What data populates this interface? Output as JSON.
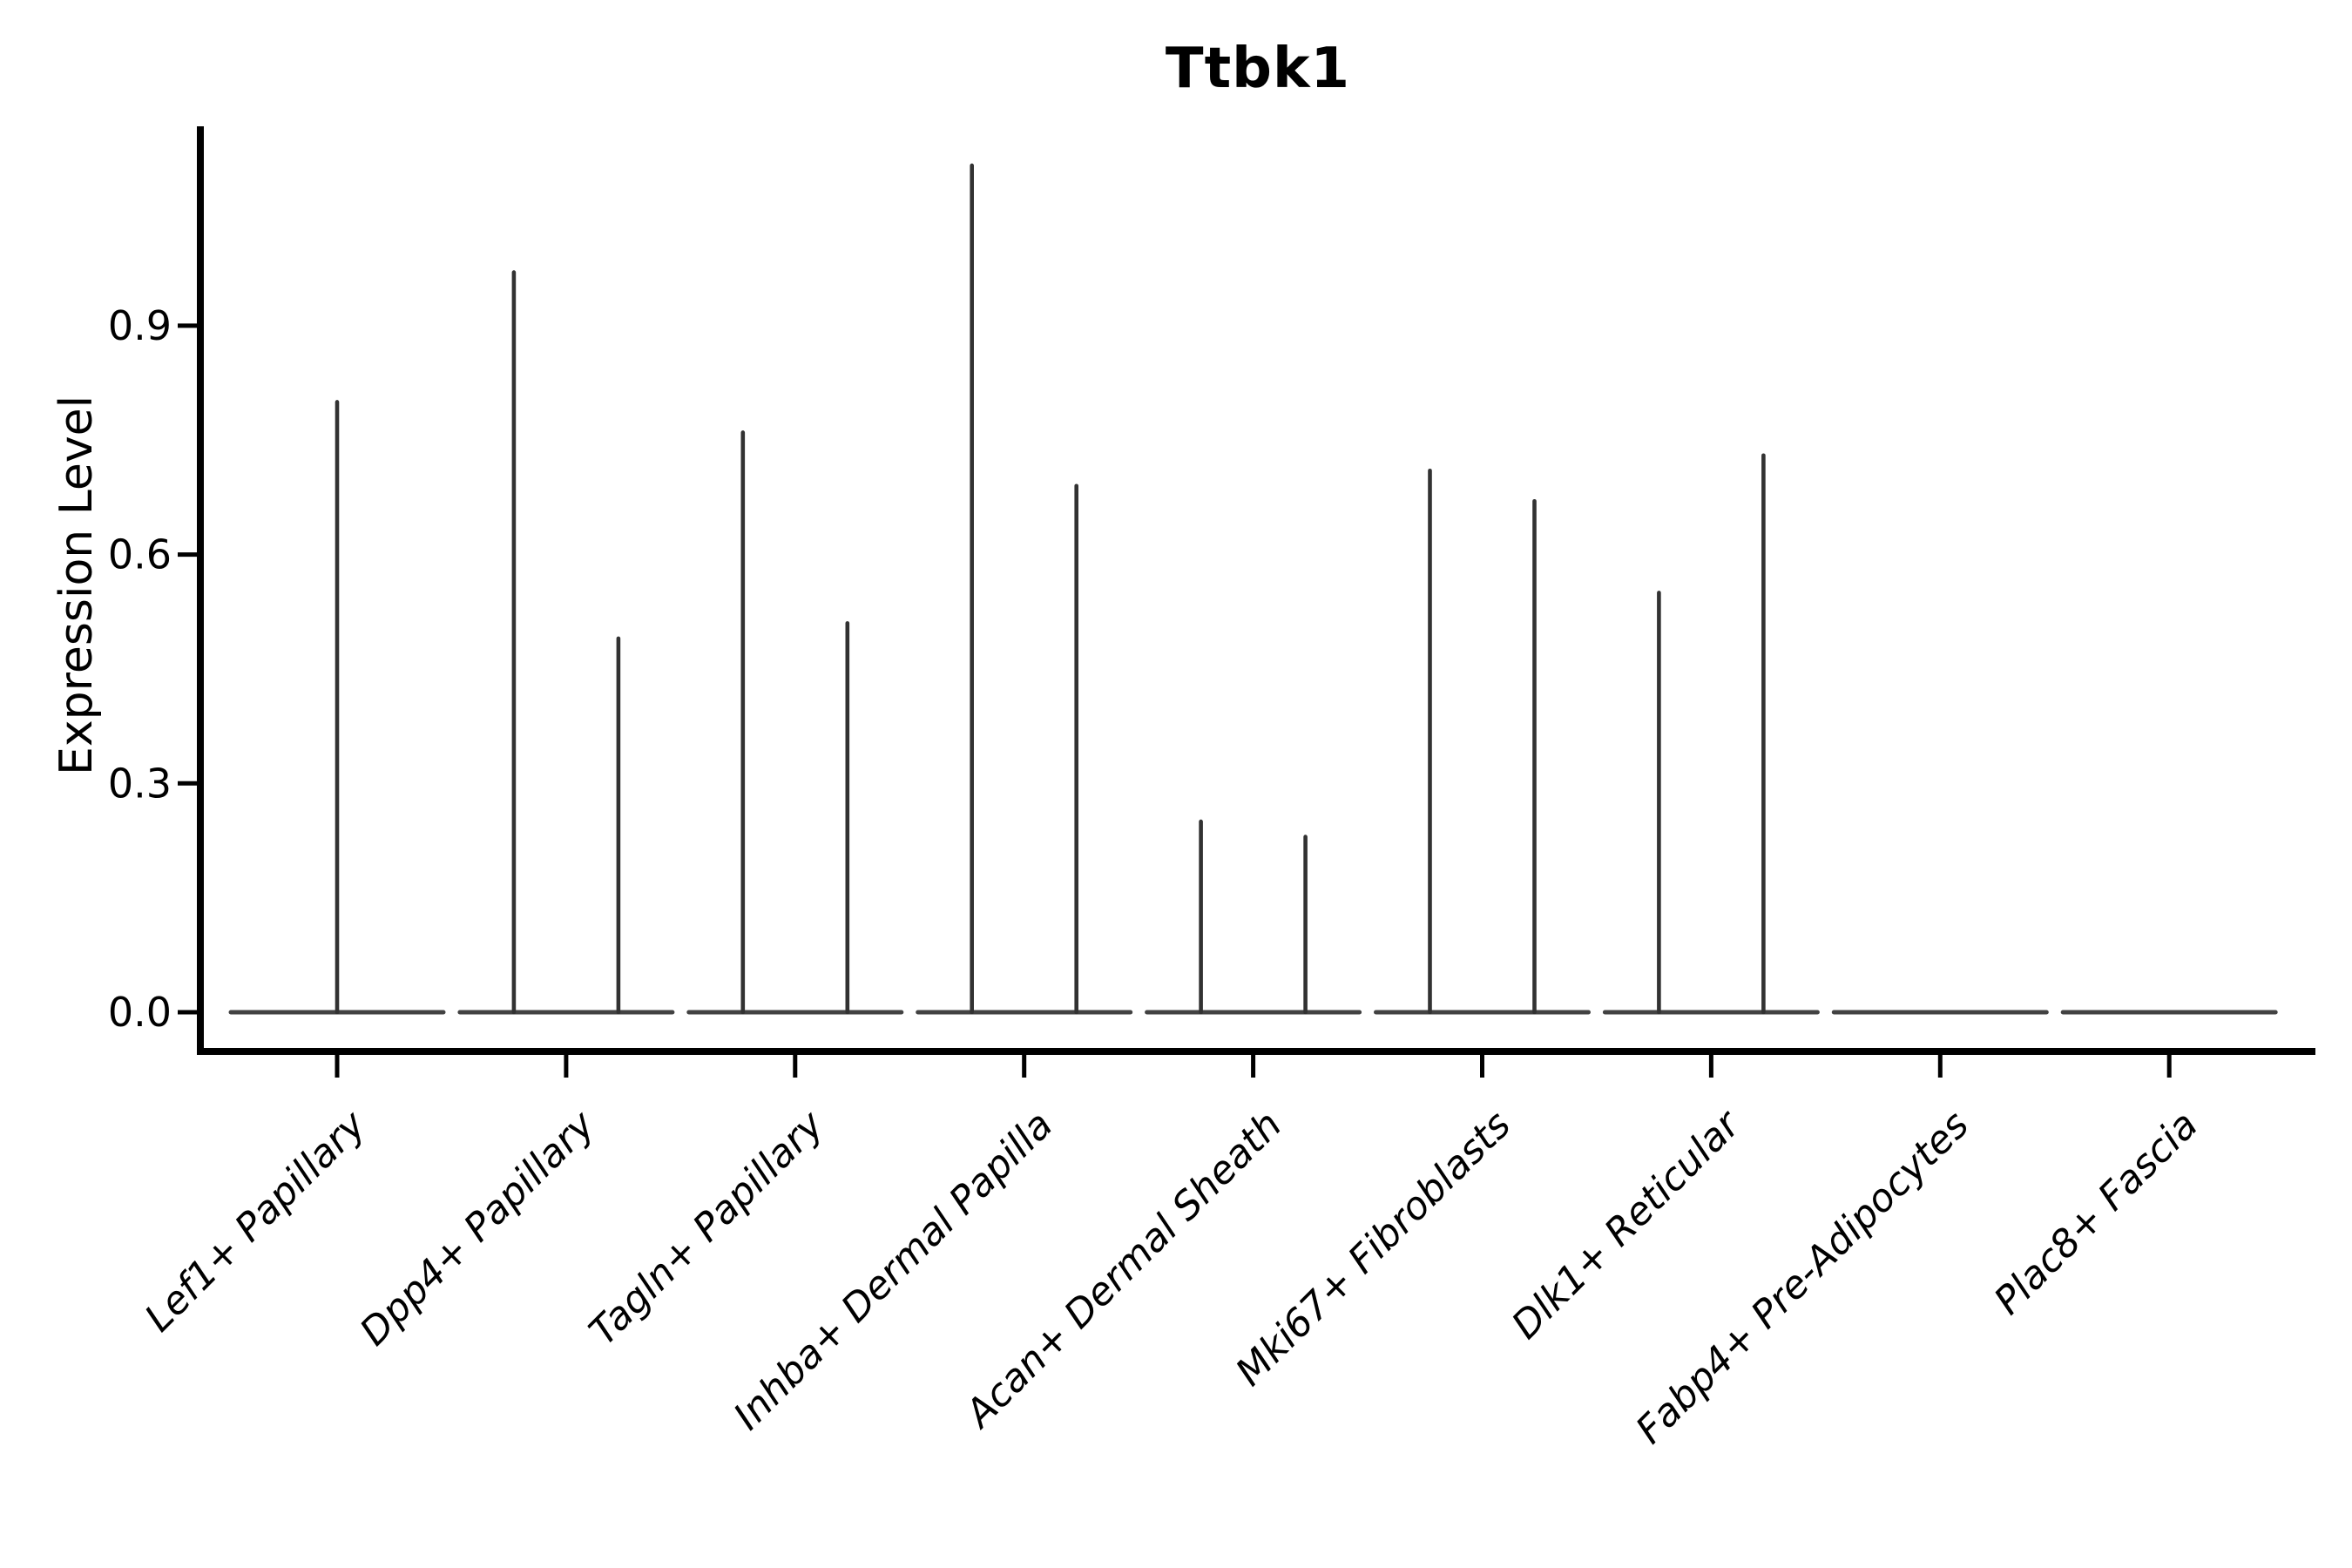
{
  "chart_data": {
    "type": "violin",
    "title": "Ttbk1",
    "ylabel": "Expression Level",
    "xlabel": "",
    "ylim": [
      -0.05,
      1.16
    ],
    "yticks": [
      0.0,
      0.3,
      0.6,
      0.9
    ],
    "ytick_labels": [
      "0.0",
      "0.3",
      "0.6",
      "0.9"
    ],
    "grid": false,
    "legend": "none",
    "description": "Violin plot of single-cell expression; nearly all cells at 0 so each violin renders as a flat body at zero with thin spikes up to the maximum expression value. Categories 2-7 contain two side-by-side violins (left/right); category 1 a single centered violin; categories 8-9 are entirely flat at zero.",
    "categories": [
      "Lef1+ Papillary",
      "Dpp4+ Papillary",
      "Tagln+ Papillary",
      "Inhba+ Dermal Papilla",
      "Acan+ Dermal Sheath",
      "Mki67+ Fibroblasts",
      "Dlk1+ Reticular",
      "Fabp4+ Pre-Adipocytes",
      "Plac8+ Fascia"
    ],
    "violins": [
      {
        "category": "Lef1+ Papillary",
        "flat_body_at_zero": true,
        "spikes": [
          {
            "position": "center",
            "max_expression": 0.8
          }
        ]
      },
      {
        "category": "Dpp4+ Papillary",
        "flat_body_at_zero": true,
        "spikes": [
          {
            "position": "left",
            "max_expression": 0.97
          },
          {
            "position": "right",
            "max_expression": 0.49
          }
        ]
      },
      {
        "category": "Tagln+ Papillary",
        "flat_body_at_zero": true,
        "spikes": [
          {
            "position": "left",
            "max_expression": 0.76
          },
          {
            "position": "right",
            "max_expression": 0.51
          }
        ]
      },
      {
        "category": "Inhba+ Dermal Papilla",
        "flat_body_at_zero": true,
        "spikes": [
          {
            "position": "left",
            "max_expression": 1.11
          },
          {
            "position": "right",
            "max_expression": 0.69
          }
        ]
      },
      {
        "category": "Acan+ Dermal Sheath",
        "flat_body_at_zero": true,
        "spikes": [
          {
            "position": "left",
            "max_expression": 0.25
          },
          {
            "position": "right",
            "max_expression": 0.23
          }
        ]
      },
      {
        "category": "Mki67+ Fibroblasts",
        "flat_body_at_zero": true,
        "spikes": [
          {
            "position": "left",
            "max_expression": 0.71
          },
          {
            "position": "right",
            "max_expression": 0.67
          }
        ]
      },
      {
        "category": "Dlk1+ Reticular",
        "flat_body_at_zero": true,
        "spikes": [
          {
            "position": "left",
            "max_expression": 0.55
          },
          {
            "position": "right",
            "max_expression": 0.73
          }
        ]
      },
      {
        "category": "Fabp4+ Pre-Adipocytes",
        "flat_body_at_zero": true,
        "spikes": []
      },
      {
        "category": "Plac8+ Fascia",
        "flat_body_at_zero": true,
        "spikes": []
      }
    ],
    "colors": {
      "violin_line": "#323232",
      "axis": "#000000",
      "text": "#000000",
      "background": "#ffffff"
    }
  }
}
